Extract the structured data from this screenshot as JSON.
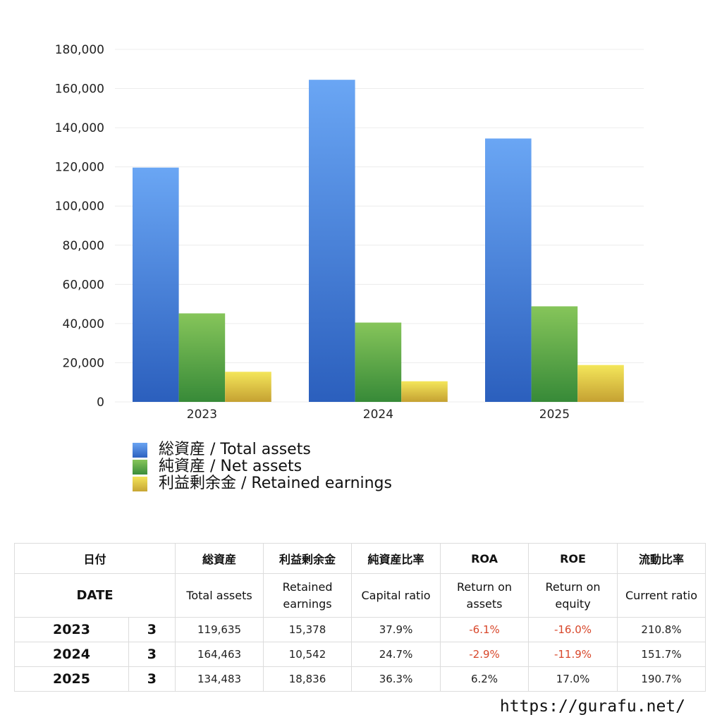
{
  "chart_data": {
    "type": "bar",
    "categories": [
      "2023",
      "2024",
      "2025"
    ],
    "series": [
      {
        "name": "総資産 / Total assets",
        "values": [
          119635,
          164463,
          134483
        ],
        "color": "#4a86e0"
      },
      {
        "name": "純資産 / Net assets",
        "values": [
          45200,
          40500,
          48800
        ],
        "color": "#5eab45"
      },
      {
        "name": "利益剰余金 / Retained earnings",
        "values": [
          15378,
          10542,
          18836
        ],
        "color": "#e6cc45"
      }
    ],
    "yticks": [
      "0",
      "20,000",
      "40,000",
      "60,000",
      "80,000",
      "100,000",
      "120,000",
      "140,000",
      "160,000",
      "180,000"
    ],
    "ylim": [
      0,
      180000
    ],
    "grid": true,
    "legend": "bottom-left"
  },
  "table": {
    "header_jp": {
      "date": "日付",
      "total_assets": "総資産",
      "retained": "利益剰余金",
      "capital_ratio": "純資産比率",
      "roa": "ROA",
      "roe": "ROE",
      "current_ratio": "流動比率"
    },
    "header_en": {
      "date": "DATE",
      "total_assets": "Total assets",
      "retained_1": "Retained",
      "retained_2": "earnings",
      "capital_ratio": "Capital ratio",
      "roa_1": "Return on",
      "roa_2": "assets",
      "roe_1": "Return on",
      "roe_2": "equity",
      "current_ratio": "Current ratio"
    },
    "rows": [
      {
        "year": "2023",
        "month": "3",
        "total_assets": "119,635",
        "retained": "15,378",
        "capital_ratio": "37.9%",
        "roa": "-6.1%",
        "roe": "-16.0%",
        "current_ratio": "210.8%"
      },
      {
        "year": "2024",
        "month": "3",
        "total_assets": "164,463",
        "retained": "10,542",
        "capital_ratio": "24.7%",
        "roa": "-2.9%",
        "roe": "-11.9%",
        "current_ratio": "151.7%"
      },
      {
        "year": "2025",
        "month": "3",
        "total_assets": "134,483",
        "retained": "18,836",
        "capital_ratio": "36.3%",
        "roa": "6.2%",
        "roe": "17.0%",
        "current_ratio": "190.7%"
      }
    ]
  },
  "footer": {
    "url": "https://gurafu.net/"
  },
  "colors": {
    "negative": "#d8472b"
  }
}
